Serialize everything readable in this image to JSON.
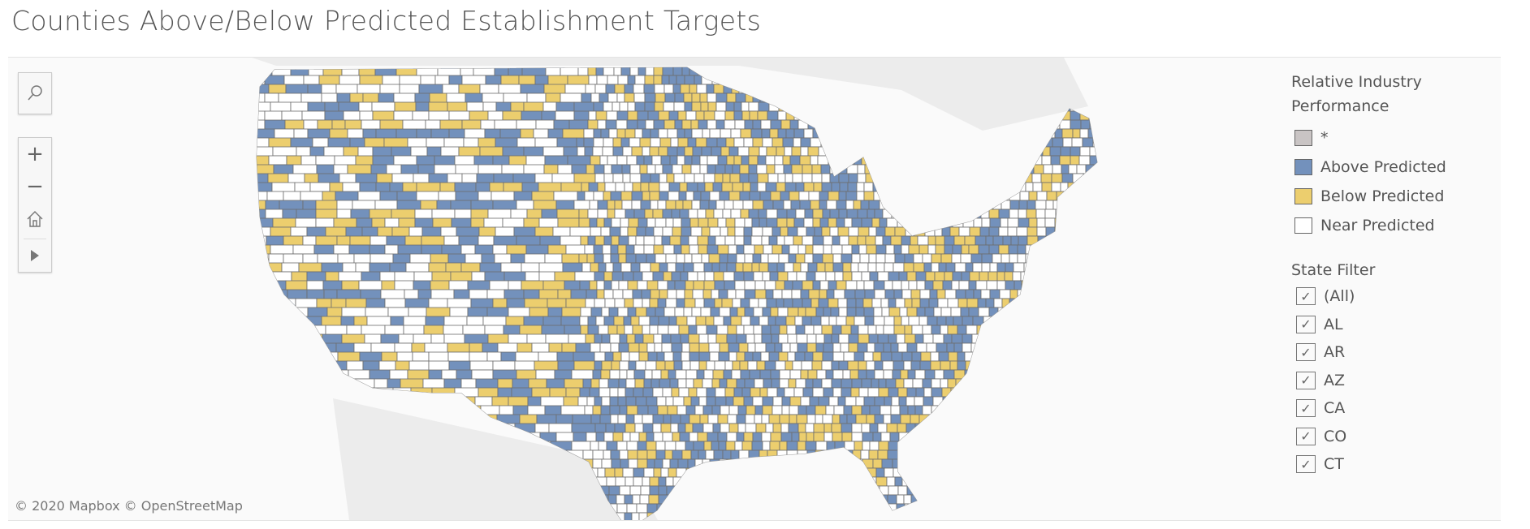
{
  "title": "Counties Above/Below Predicted Establishment Targets",
  "map_controls": {
    "search_icon": "search-icon",
    "zoom_in": "+",
    "zoom_out": "−",
    "home_icon": "home-icon",
    "expand_icon": "play-triangle-icon"
  },
  "attribution": "© 2020 Mapbox © OpenStreetMap",
  "legend": {
    "title_line1": "Relative Industry",
    "title_line2": "Performance",
    "items": [
      {
        "label": "*",
        "color": "#c9c4c4"
      },
      {
        "label": "Above Predicted",
        "color": "#7391bc"
      },
      {
        "label": "Below Predicted",
        "color": "#ecce6e"
      },
      {
        "label": "Near Predicted",
        "color": "#ffffff"
      }
    ]
  },
  "state_filter": {
    "title": "State Filter",
    "items": [
      {
        "label": "(All)",
        "checked": true
      },
      {
        "label": "AL",
        "checked": true
      },
      {
        "label": "AR",
        "checked": true
      },
      {
        "label": "AZ",
        "checked": true
      },
      {
        "label": "CA",
        "checked": true
      },
      {
        "label": "CO",
        "checked": true
      },
      {
        "label": "CT",
        "checked": true
      }
    ]
  }
}
